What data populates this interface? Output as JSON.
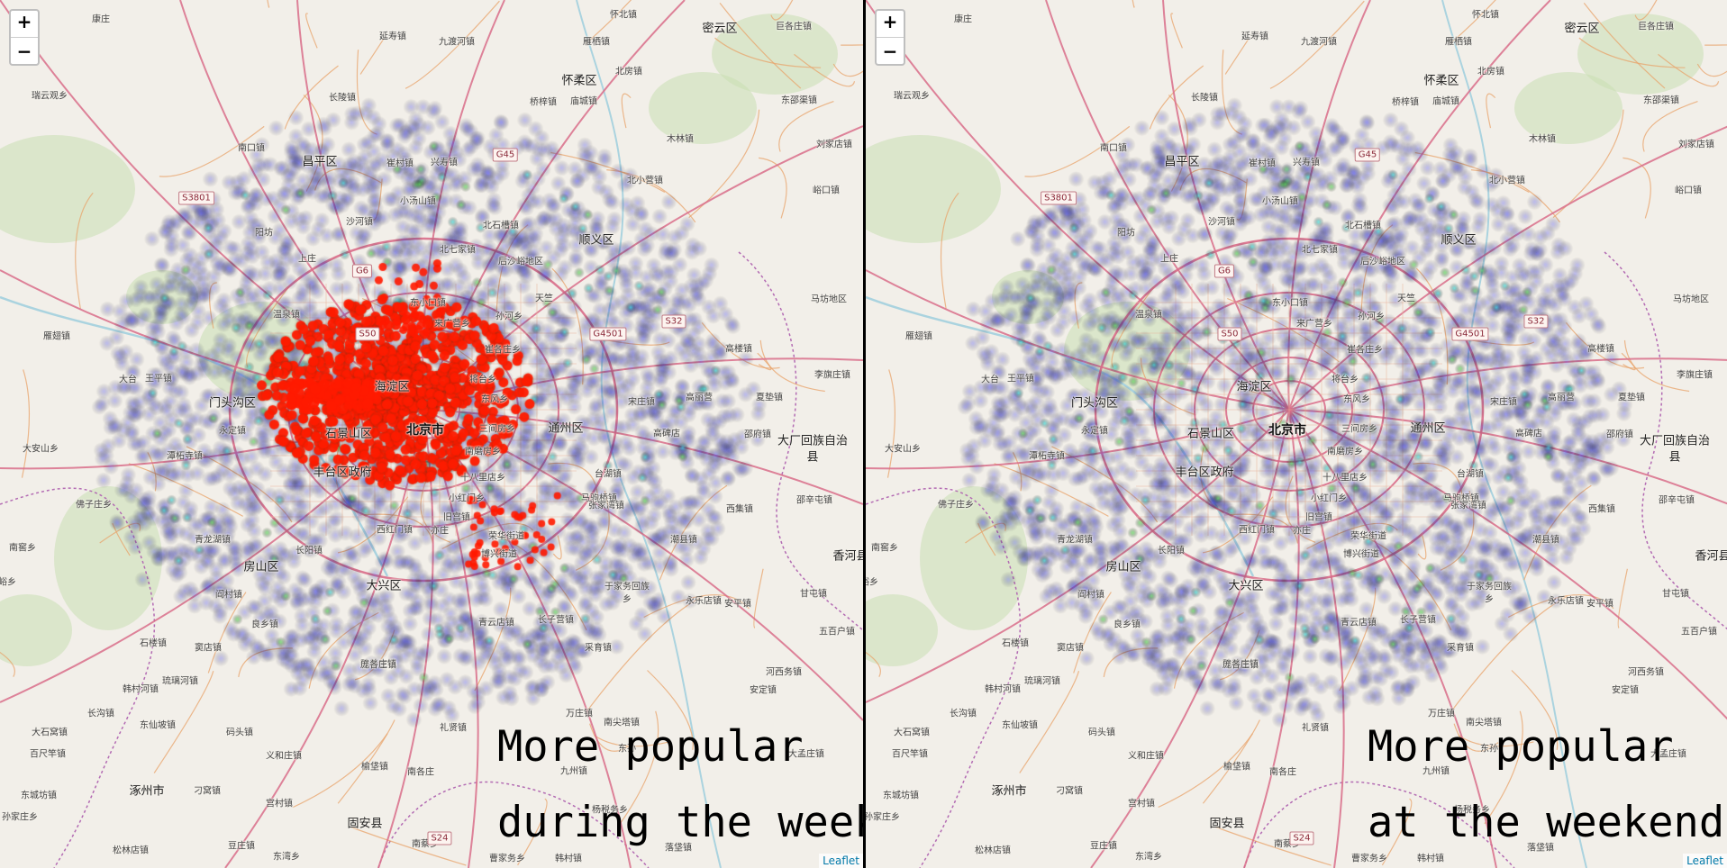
{
  "panels": [
    {
      "id": "weekday",
      "caption_line1": "More popular",
      "caption_line2": "during the week",
      "zoom_in": "+",
      "zoom_out": "−",
      "attribution": "Leaflet",
      "hot_zone": true
    },
    {
      "id": "weekend",
      "caption_line1": "More popular",
      "caption_line2": "at the weekends",
      "zoom_in": "+",
      "zoom_out": "−",
      "attribution": "Leaflet",
      "hot_zone": false
    }
  ],
  "map_labels": [
    {
      "text": "康庄",
      "kind": "town"
    },
    {
      "text": "怀北镇",
      "kind": "town"
    },
    {
      "text": "密云区",
      "kind": "district"
    },
    {
      "text": "巨各庄镇",
      "kind": "town"
    },
    {
      "text": "延寿镇",
      "kind": "town"
    },
    {
      "text": "九渡河镇",
      "kind": "town"
    },
    {
      "text": "雁栖镇",
      "kind": "town"
    },
    {
      "text": "北房镇",
      "kind": "town"
    },
    {
      "text": "怀柔区",
      "kind": "district"
    },
    {
      "text": "长陵镇",
      "kind": "town"
    },
    {
      "text": "桥梓镇",
      "kind": "town"
    },
    {
      "text": "庙城镇",
      "kind": "town"
    },
    {
      "text": "东邵渠镇",
      "kind": "town"
    },
    {
      "text": "瑞云观乡",
      "kind": "town"
    },
    {
      "text": "南口镇",
      "kind": "town"
    },
    {
      "text": "昌平区",
      "kind": "district"
    },
    {
      "text": "崔村镇",
      "kind": "town"
    },
    {
      "text": "兴寿镇",
      "kind": "town"
    },
    {
      "text": "木林镇",
      "kind": "town"
    },
    {
      "text": "刘家店镇",
      "kind": "town"
    },
    {
      "text": "北小营镇",
      "kind": "town"
    },
    {
      "text": "峪口镇",
      "kind": "town"
    },
    {
      "text": "小汤山镇",
      "kind": "town"
    },
    {
      "text": "沙河镇",
      "kind": "town"
    },
    {
      "text": "北石槽镇",
      "kind": "town"
    },
    {
      "text": "顺义区",
      "kind": "district"
    },
    {
      "text": "阳坊",
      "kind": "town"
    },
    {
      "text": "北七家镇",
      "kind": "town"
    },
    {
      "text": "后沙峪地区",
      "kind": "town"
    },
    {
      "text": "上庄",
      "kind": "town"
    },
    {
      "text": "东小口镇",
      "kind": "town"
    },
    {
      "text": "天竺",
      "kind": "town"
    },
    {
      "text": "马坊地区",
      "kind": "town"
    },
    {
      "text": "温泉镇",
      "kind": "town"
    },
    {
      "text": "来广营乡",
      "kind": "town"
    },
    {
      "text": "孙河乡",
      "kind": "town"
    },
    {
      "text": "雁翅镇",
      "kind": "town"
    },
    {
      "text": "崔各庄乡",
      "kind": "town"
    },
    {
      "text": "高楼镇",
      "kind": "town"
    },
    {
      "text": "大台",
      "kind": "town"
    },
    {
      "text": "王平镇",
      "kind": "town"
    },
    {
      "text": "海淀区",
      "kind": "district"
    },
    {
      "text": "将台乡",
      "kind": "town"
    },
    {
      "text": "李旗庄镇",
      "kind": "town"
    },
    {
      "text": "门头沟区",
      "kind": "district"
    },
    {
      "text": "高丽营",
      "kind": "town"
    },
    {
      "text": "东风乡",
      "kind": "town"
    },
    {
      "text": "宋庄镇",
      "kind": "town"
    },
    {
      "text": "高碑店",
      "kind": "town"
    },
    {
      "text": "夏垫镇",
      "kind": "town"
    },
    {
      "text": "永定镇",
      "kind": "town"
    },
    {
      "text": "石景山区",
      "kind": "district"
    },
    {
      "text": "北京市",
      "kind": "city"
    },
    {
      "text": "三间房乡",
      "kind": "town"
    },
    {
      "text": "通州区",
      "kind": "district"
    },
    {
      "text": "邵府镇",
      "kind": "town"
    },
    {
      "text": "大厂回族自治",
      "kind": "district"
    },
    {
      "text": "县",
      "kind": "district"
    },
    {
      "text": "大安山乡",
      "kind": "town"
    },
    {
      "text": "潭柘寺镇",
      "kind": "town"
    },
    {
      "text": "南磨房乡",
      "kind": "town"
    },
    {
      "text": "丰台区政府",
      "kind": "district"
    },
    {
      "text": "十八里店乡",
      "kind": "town"
    },
    {
      "text": "台湖镇",
      "kind": "town"
    },
    {
      "text": "马驹桥镇",
      "kind": "town"
    },
    {
      "text": "张家湾镇",
      "kind": "town"
    },
    {
      "text": "佛子庄乡",
      "kind": "town"
    },
    {
      "text": "小红门乡",
      "kind": "town"
    },
    {
      "text": "邵辛屯镇",
      "kind": "town"
    },
    {
      "text": "西集镇",
      "kind": "town"
    },
    {
      "text": "旧宫镇",
      "kind": "town"
    },
    {
      "text": "南窖乡",
      "kind": "town"
    },
    {
      "text": "青龙湖镇",
      "kind": "town"
    },
    {
      "text": "西红门镇",
      "kind": "town"
    },
    {
      "text": "亦庄",
      "kind": "town"
    },
    {
      "text": "荣华街道",
      "kind": "town"
    },
    {
      "text": "潮县镇",
      "kind": "town"
    },
    {
      "text": "香河县",
      "kind": "district"
    },
    {
      "text": "长阳镇",
      "kind": "town"
    },
    {
      "text": "博兴街道",
      "kind": "town"
    },
    {
      "text": "房山区",
      "kind": "district"
    },
    {
      "text": "大兴区",
      "kind": "district"
    },
    {
      "text": "于家务回族",
      "kind": "town"
    },
    {
      "text": "乡",
      "kind": "town"
    },
    {
      "text": "阎村镇",
      "kind": "town"
    },
    {
      "text": "甘屯镇",
      "kind": "town"
    },
    {
      "text": "良乡镇",
      "kind": "town"
    },
    {
      "text": "永乐店镇",
      "kind": "town"
    },
    {
      "text": "安平镇",
      "kind": "town"
    },
    {
      "text": "青云店镇",
      "kind": "town"
    },
    {
      "text": "长子营镇",
      "kind": "town"
    },
    {
      "text": "五百户镇",
      "kind": "town"
    },
    {
      "text": "石楼镇",
      "kind": "town"
    },
    {
      "text": "窦店镇",
      "kind": "town"
    },
    {
      "text": "采育镇",
      "kind": "town"
    },
    {
      "text": "河西务镇",
      "kind": "town"
    },
    {
      "text": "琉璃河镇",
      "kind": "town"
    },
    {
      "text": "魏善庄镇",
      "kind": "town"
    },
    {
      "text": "韩村河镇",
      "kind": "town"
    },
    {
      "text": "庞各庄镇",
      "kind": "town"
    },
    {
      "text": "安定镇",
      "kind": "town"
    },
    {
      "text": "长沟镇",
      "kind": "town"
    },
    {
      "text": "万庄镇",
      "kind": "town"
    },
    {
      "text": "东仙坡镇",
      "kind": "town"
    },
    {
      "text": "南尖塔镇",
      "kind": "town"
    },
    {
      "text": "大石窝镇",
      "kind": "town"
    },
    {
      "text": "码头镇",
      "kind": "town"
    },
    {
      "text": "礼贤镇",
      "kind": "town"
    },
    {
      "text": "东孙",
      "kind": "town"
    },
    {
      "text": "百尺竿镇",
      "kind": "town"
    },
    {
      "text": "义和庄镇",
      "kind": "town"
    },
    {
      "text": "榆垡镇",
      "kind": "town"
    },
    {
      "text": "九州镇",
      "kind": "town"
    },
    {
      "text": "大孟庄镇",
      "kind": "town"
    },
    {
      "text": "东城坊镇",
      "kind": "town"
    },
    {
      "text": "涿州市",
      "kind": "district"
    },
    {
      "text": "刁窝镇",
      "kind": "town"
    },
    {
      "text": "南各庄",
      "kind": "town"
    },
    {
      "text": "孙家庄乡",
      "kind": "town"
    },
    {
      "text": "宫村镇",
      "kind": "town"
    },
    {
      "text": "杨税务乡",
      "kind": "town"
    },
    {
      "text": "固安县",
      "kind": "district"
    },
    {
      "text": "豆庄镇",
      "kind": "town"
    },
    {
      "text": "松林店镇",
      "kind": "town"
    },
    {
      "text": "东湾乡",
      "kind": "town"
    },
    {
      "text": "曹家务乡",
      "kind": "town"
    },
    {
      "text": "韩村镇",
      "kind": "town"
    },
    {
      "text": "落垡镇",
      "kind": "town"
    },
    {
      "text": "南蔡乡",
      "kind": "town"
    },
    {
      "text": "峪乡",
      "kind": "town"
    }
  ],
  "road_shields": [
    "G45",
    "S3801",
    "G6",
    "S50",
    "G4501",
    "S32",
    "S24"
  ],
  "colors": {
    "land": "#f2efe9",
    "heat_blue": "#4b4dff",
    "heat_cyan": "#2ee6e6",
    "heat_green": "#55e855",
    "heat_red": "#ff1a00",
    "road_major": "#d96d8a",
    "road_minor": "#e8a36a",
    "boundary": "#b36bb3",
    "park": "#c9dfb2",
    "water": "#aad3df"
  }
}
